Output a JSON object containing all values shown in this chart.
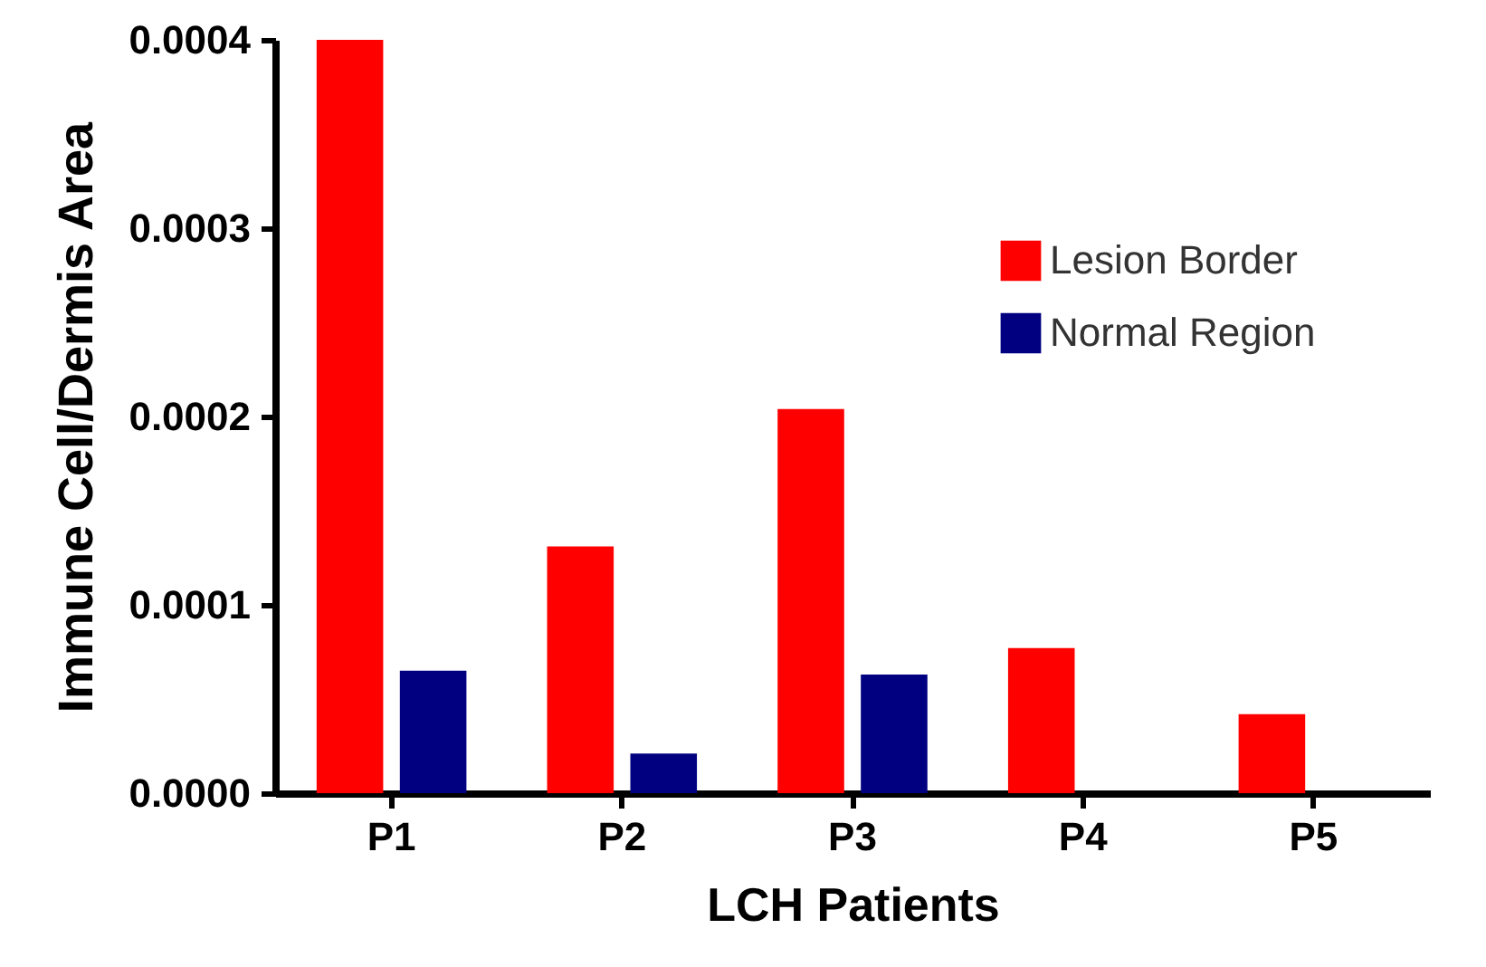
{
  "chart_data": {
    "type": "bar",
    "xlabel": "LCH Patients",
    "ylabel": "Immune Cell/Dermis Area",
    "categories": [
      "P1",
      "P2",
      "P3",
      "P4",
      "P5"
    ],
    "series": [
      {
        "name": "Lesion Border",
        "color": "#ff0000",
        "values": [
          0.0004,
          0.000131,
          0.000204,
          7.7e-05,
          4.2e-05
        ]
      },
      {
        "name": "Normal Region",
        "color": "#000080",
        "values": [
          6.5e-05,
          2.1e-05,
          6.3e-05,
          0,
          0
        ]
      }
    ],
    "ylim": [
      0,
      0.0004
    ],
    "yticks": [
      {
        "value": 0,
        "label": "0.0000"
      },
      0.0001,
      0.0002,
      0.0003,
      0.0004
    ],
    "legend": "top right"
  }
}
